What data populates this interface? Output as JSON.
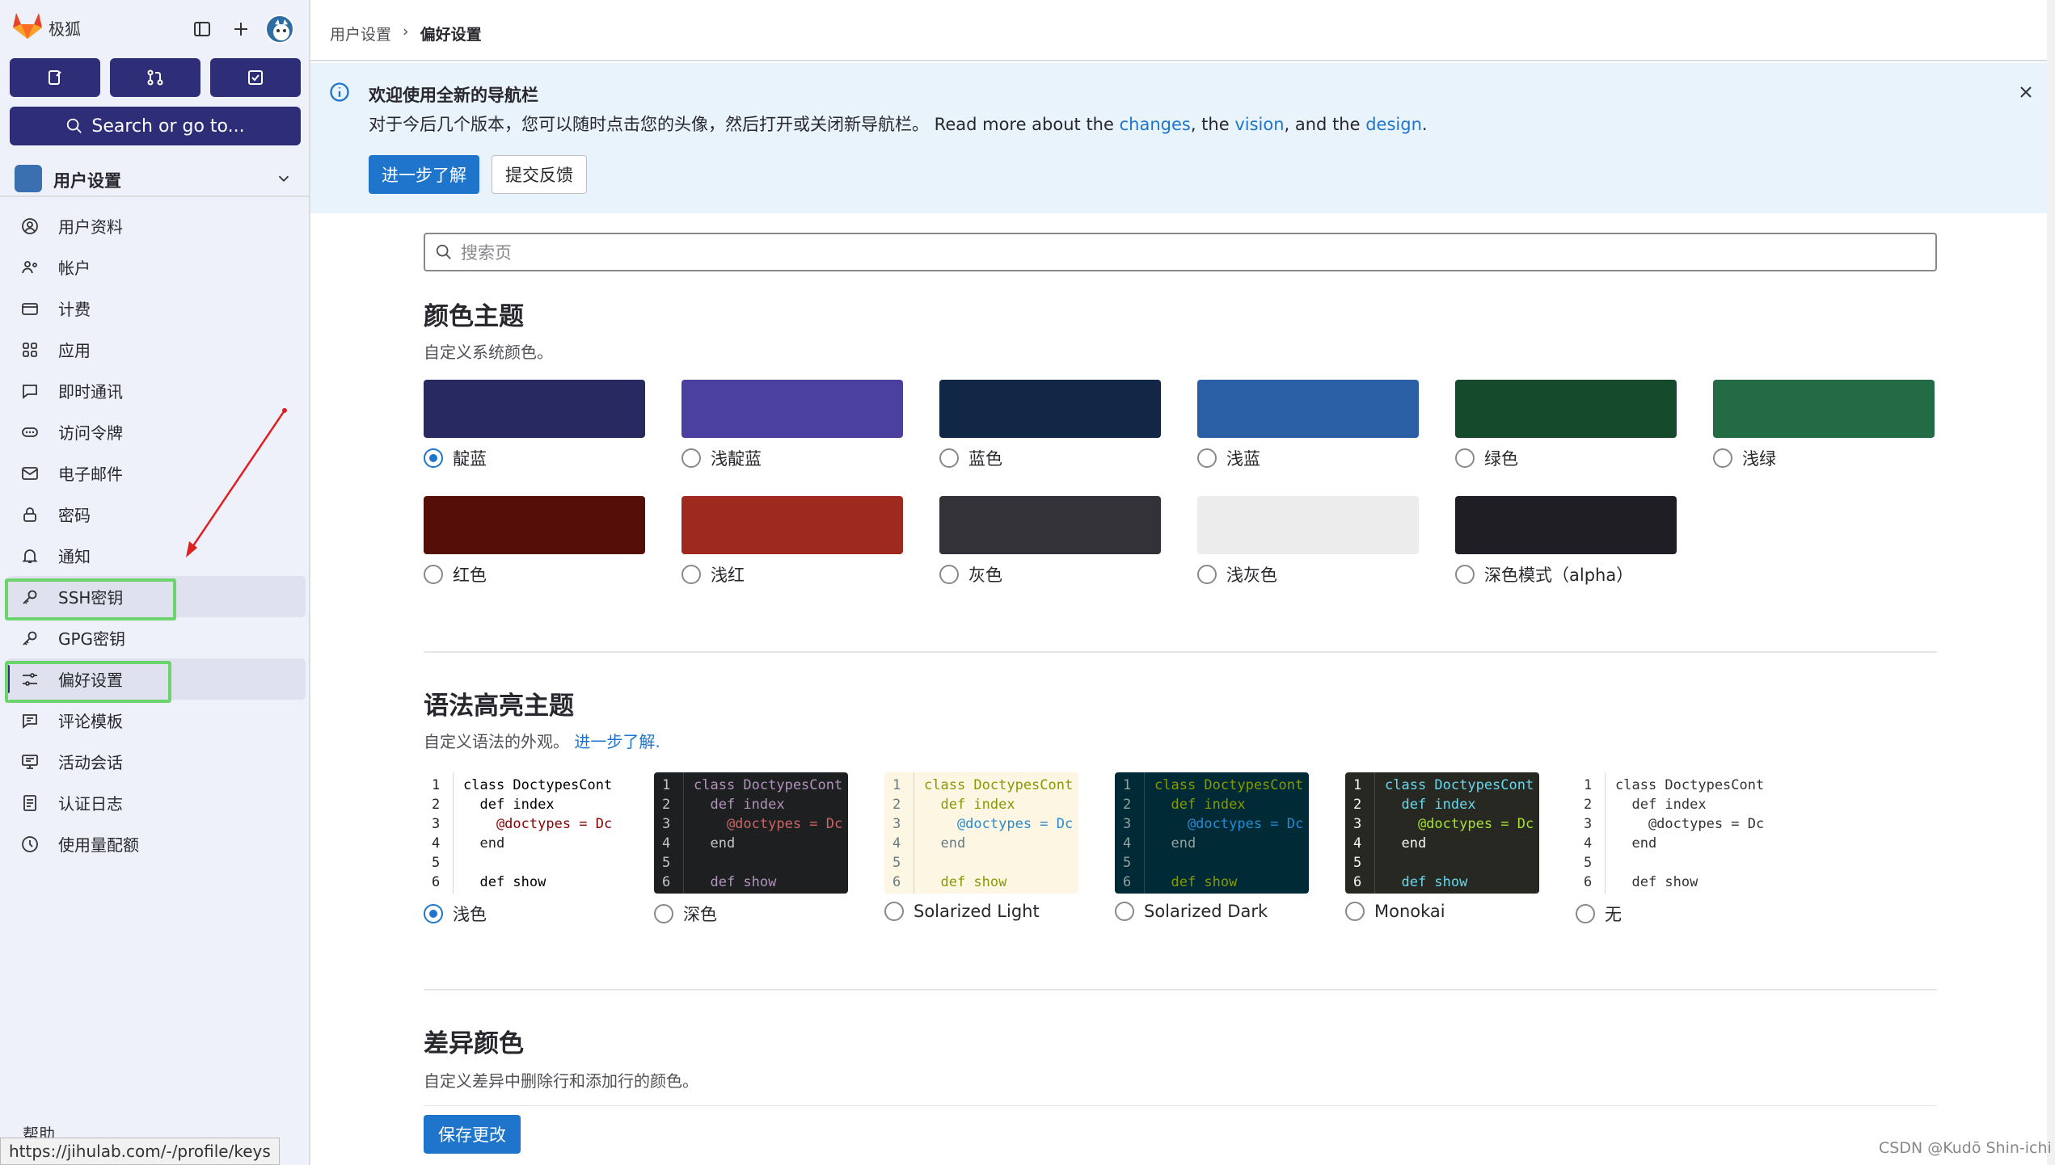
{
  "sidebar": {
    "brand": "极狐",
    "quick_search": "Search or go to...",
    "context_title": "用户设置",
    "items": [
      {
        "label": "用户资料",
        "icon": "user-icon"
      },
      {
        "label": "帐户",
        "icon": "account-icon"
      },
      {
        "label": "计费",
        "icon": "credit-card-icon"
      },
      {
        "label": "应用",
        "icon": "apps-icon"
      },
      {
        "label": "即时通讯",
        "icon": "comment-icon"
      },
      {
        "label": "访问令牌",
        "icon": "token-icon"
      },
      {
        "label": "电子邮件",
        "icon": "mail-icon"
      },
      {
        "label": "密码",
        "icon": "lock-icon"
      },
      {
        "label": "通知",
        "icon": "bell-icon"
      },
      {
        "label": "SSH密钥",
        "icon": "key-icon"
      },
      {
        "label": "GPG密钥",
        "icon": "key-icon"
      },
      {
        "label": "偏好设置",
        "icon": "preferences-icon"
      },
      {
        "label": "评论模板",
        "icon": "comment-lines-icon"
      },
      {
        "label": "活动会话",
        "icon": "monitor-icon"
      },
      {
        "label": "认证日志",
        "icon": "log-icon"
      },
      {
        "label": "使用量配额",
        "icon": "quota-icon"
      }
    ],
    "help": "帮助"
  },
  "status_url": "https://jihulab.com/-/profile/keys",
  "breadcrumb": {
    "parent": "用户设置",
    "current": "偏好设置"
  },
  "banner": {
    "title": "欢迎使用全新的导航栏",
    "body_text": "对于今后几个版本，您可以随时点击您的头像，然后打开或关闭新导航栏。 Read more about the ",
    "link_changes": "changes",
    "sep1": ", the ",
    "link_vision": "vision",
    "sep2": ", and the ",
    "link_design": "design",
    "end": ".",
    "learn_more": "进一步了解",
    "feedback": "提交反馈"
  },
  "search_placeholder": "搜索页",
  "color_theme": {
    "title": "颜色主题",
    "description": "自定义系统颜色。",
    "selected": "靛蓝",
    "themes": [
      {
        "label": "靛蓝",
        "color": "#292961"
      },
      {
        "label": "浅靛蓝",
        "color": "#4b3fa0"
      },
      {
        "label": "蓝色",
        "color": "#112745"
      },
      {
        "label": "浅蓝",
        "color": "#2a5fa6"
      },
      {
        "label": "绿色",
        "color": "#154a2c"
      },
      {
        "label": "浅绿",
        "color": "#226b44"
      },
      {
        "label": "红色",
        "color": "#560f08"
      },
      {
        "label": "浅红",
        "color": "#9e2a1f"
      },
      {
        "label": "灰色",
        "color": "#333238"
      },
      {
        "label": "浅灰色",
        "color": "#ececec"
      },
      {
        "label": "深色模式（alpha）",
        "color": "#1f1e24"
      }
    ]
  },
  "syntax_theme": {
    "title": "语法高亮主题",
    "description": "自定义语法的外观。",
    "learn_more": "进一步了解.",
    "selected": "浅色",
    "code_lines": [
      "class DoctypesCont",
      "  def index",
      "    @doctypes = Dc",
      "  end",
      "",
      "  def show"
    ],
    "line_numbers": [
      "1",
      "2",
      "3",
      "4",
      "5",
      "6"
    ],
    "themes": [
      {
        "label": "浅色",
        "bg": "#ffffff",
        "fg": "#222222",
        "kw": "#000000",
        "name": "#880000"
      },
      {
        "label": "深色",
        "bg": "#1d1f21",
        "fg": "#c5c8c6",
        "kw": "#b294bb",
        "name": "#cc6666"
      },
      {
        "label": "Solarized Light",
        "bg": "#fdf6e3",
        "fg": "#657b83",
        "kw": "#859900",
        "name": "#268bd2"
      },
      {
        "label": "Solarized Dark",
        "bg": "#002b36",
        "fg": "#93a1a1",
        "kw": "#859900",
        "name": "#268bd2"
      },
      {
        "label": "Monokai",
        "bg": "#272822",
        "fg": "#f8f8f2",
        "kw": "#66d9ef",
        "name": "#a6e22e"
      },
      {
        "label": "无",
        "bg": "#ffffff",
        "fg": "#333333",
        "kw": "#333333",
        "name": "#333333"
      }
    ]
  },
  "diff_colors": {
    "title": "差异颜色",
    "description": "自定义差异中删除行和添加行的颜色。"
  },
  "save_button": "保存更改",
  "watermark": "CSDN @Kudō Shin-ichi"
}
